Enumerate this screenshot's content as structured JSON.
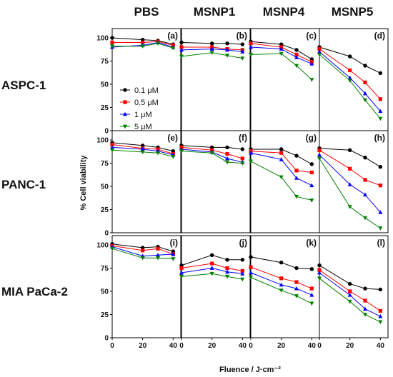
{
  "figure": {
    "columns": [
      "PBS",
      "MSNP1",
      "MSNP4",
      "MSNP5"
    ],
    "rows": [
      "ASPC-1",
      "PANC-1",
      "MIA PaCa-2"
    ],
    "ylabel": "% Cell viability",
    "xlabel": "Fluence / J·cm⁻²",
    "legend": [
      "0.1 μM",
      "0.5 μM",
      "1 μM",
      "5 μM"
    ],
    "series_colors": [
      "#000000",
      "#ff0000",
      "#0000ff",
      "#008000"
    ]
  },
  "chart_data": [
    {
      "panel": "(a)",
      "type": "line",
      "x": [
        0,
        20,
        30,
        40
      ],
      "ylim": [
        0,
        110
      ],
      "xlim": [
        0,
        45
      ],
      "series": [
        {
          "name": "0.1 μM",
          "values": [
            100,
            98,
            97,
            93
          ]
        },
        {
          "name": "0.5 μM",
          "values": [
            95,
            95,
            96,
            92
          ]
        },
        {
          "name": "1 μM",
          "values": [
            90,
            92,
            95,
            90
          ]
        },
        {
          "name": "5 μM",
          "values": [
            91,
            91,
            94,
            89
          ]
        }
      ]
    },
    {
      "panel": "(b)",
      "type": "line",
      "x": [
        0,
        20,
        30,
        40
      ],
      "ylim": [
        0,
        110
      ],
      "xlim": [
        0,
        45
      ],
      "series": [
        {
          "name": "0.1 μM",
          "values": [
            95,
            94,
            94,
            93
          ]
        },
        {
          "name": "0.5 μM",
          "values": [
            90,
            90,
            88,
            87
          ]
        },
        {
          "name": "1 μM",
          "values": [
            87,
            88,
            87,
            85
          ]
        },
        {
          "name": "5 μM",
          "values": [
            80,
            84,
            81,
            78
          ]
        }
      ]
    },
    {
      "panel": "(c)",
      "type": "line",
      "x": [
        0,
        20,
        30,
        40
      ],
      "ylim": [
        0,
        110
      ],
      "xlim": [
        0,
        45
      ],
      "series": [
        {
          "name": "0.1 μM",
          "values": [
            96,
            93,
            87,
            77
          ]
        },
        {
          "name": "0.5 μM",
          "values": [
            94,
            90,
            82,
            74
          ]
        },
        {
          "name": "1 μM",
          "values": [
            90,
            88,
            79,
            72
          ]
        },
        {
          "name": "5 μM",
          "values": [
            82,
            83,
            70,
            55
          ]
        }
      ]
    },
    {
      "panel": "(d)",
      "type": "line",
      "x": [
        0,
        20,
        30,
        40
      ],
      "ylim": [
        0,
        110
      ],
      "xlim": [
        0,
        45
      ],
      "series": [
        {
          "name": "0.1 μM",
          "values": [
            90,
            80,
            70,
            62
          ]
        },
        {
          "name": "0.5 μM",
          "values": [
            88,
            65,
            52,
            34
          ]
        },
        {
          "name": "1 μM",
          "values": [
            85,
            57,
            40,
            21
          ]
        },
        {
          "name": "5 μM",
          "values": [
            82,
            54,
            33,
            13
          ]
        }
      ]
    },
    {
      "panel": "(e)",
      "type": "line",
      "x": [
        0,
        20,
        30,
        40
      ],
      "ylim": [
        0,
        110
      ],
      "xlim": [
        0,
        45
      ],
      "series": [
        {
          "name": "0.1 μM",
          "values": [
            97,
            94,
            92,
            88
          ]
        },
        {
          "name": "0.5 μM",
          "values": [
            95,
            91,
            90,
            85
          ]
        },
        {
          "name": "1 μM",
          "values": [
            92,
            90,
            88,
            84
          ]
        },
        {
          "name": "5 μM",
          "values": [
            89,
            87,
            86,
            82
          ]
        }
      ]
    },
    {
      "panel": "(f)",
      "type": "line",
      "x": [
        0,
        20,
        30,
        40
      ],
      "ylim": [
        0,
        110
      ],
      "xlim": [
        0,
        45
      ],
      "series": [
        {
          "name": "0.1 μM",
          "values": [
            94,
            92,
            92,
            90
          ]
        },
        {
          "name": "0.5 μM",
          "values": [
            92,
            89,
            85,
            80
          ]
        },
        {
          "name": "1 μM",
          "values": [
            90,
            87,
            80,
            76
          ]
        },
        {
          "name": "5 μM",
          "values": [
            88,
            86,
            76,
            75
          ]
        }
      ]
    },
    {
      "panel": "(g)",
      "type": "line",
      "x": [
        0,
        20,
        30,
        40
      ],
      "ylim": [
        0,
        110
      ],
      "xlim": [
        0,
        45
      ],
      "series": [
        {
          "name": "0.1 μM",
          "values": [
            90,
            90,
            83,
            74
          ]
        },
        {
          "name": "0.5 μM",
          "values": [
            88,
            86,
            67,
            65
          ]
        },
        {
          "name": "1 μM",
          "values": [
            86,
            79,
            59,
            51
          ]
        },
        {
          "name": "5 μM",
          "values": [
            77,
            60,
            39,
            35
          ]
        }
      ]
    },
    {
      "panel": "(h)",
      "type": "line",
      "x": [
        0,
        20,
        30,
        40
      ],
      "ylim": [
        0,
        110
      ],
      "xlim": [
        0,
        45
      ],
      "series": [
        {
          "name": "0.1 μM",
          "values": [
            91,
            89,
            81,
            71
          ]
        },
        {
          "name": "0.5 μM",
          "values": [
            89,
            69,
            57,
            51
          ]
        },
        {
          "name": "1 μM",
          "values": [
            84,
            52,
            41,
            22
          ]
        },
        {
          "name": "5 μM",
          "values": [
            80,
            28,
            16,
            5
          ]
        }
      ]
    },
    {
      "panel": "(i)",
      "type": "line",
      "x": [
        0,
        20,
        30,
        40
      ],
      "ylim": [
        0,
        110
      ],
      "xlim": [
        0,
        45
      ],
      "series": [
        {
          "name": "0.1 μM",
          "values": [
            101,
            97,
            98,
            93
          ]
        },
        {
          "name": "0.5 μM",
          "values": [
            99,
            94,
            96,
            90
          ]
        },
        {
          "name": "1 μM",
          "values": [
            98,
            88,
            89,
            90
          ]
        },
        {
          "name": "5 μM",
          "values": [
            96,
            86,
            86,
            85
          ]
        }
      ]
    },
    {
      "panel": "(j)",
      "type": "line",
      "x": [
        0,
        20,
        30,
        40
      ],
      "ylim": [
        0,
        110
      ],
      "xlim": [
        0,
        45
      ],
      "series": [
        {
          "name": "0.1 μM",
          "values": [
            78,
            89,
            84,
            84
          ]
        },
        {
          "name": "0.5 μM",
          "values": [
            75,
            80,
            75,
            72
          ]
        },
        {
          "name": "1 μM",
          "values": [
            70,
            75,
            71,
            69
          ]
        },
        {
          "name": "5 μM",
          "values": [
            66,
            69,
            66,
            63
          ]
        }
      ]
    },
    {
      "panel": "(k)",
      "type": "line",
      "x": [
        0,
        20,
        30,
        40
      ],
      "ylim": [
        0,
        110
      ],
      "xlim": [
        0,
        45
      ],
      "series": [
        {
          "name": "0.1 μM",
          "values": [
            87,
            81,
            75,
            74
          ]
        },
        {
          "name": "0.5 μM",
          "values": [
            76,
            64,
            60,
            53
          ]
        },
        {
          "name": "1 μM",
          "values": [
            70,
            57,
            53,
            46
          ]
        },
        {
          "name": "5 μM",
          "values": [
            65,
            51,
            45,
            37
          ]
        }
      ]
    },
    {
      "panel": "(l)",
      "type": "line",
      "x": [
        0,
        20,
        30,
        40
      ],
      "ylim": [
        0,
        110
      ],
      "xlim": [
        0,
        45
      ],
      "series": [
        {
          "name": "0.1 μM",
          "values": [
            78,
            58,
            53,
            52
          ]
        },
        {
          "name": "0.5 μM",
          "values": [
            73,
            50,
            40,
            29
          ]
        },
        {
          "name": "1 μM",
          "values": [
            70,
            46,
            31,
            23
          ]
        },
        {
          "name": "5 μM",
          "values": [
            64,
            39,
            25,
            17
          ]
        }
      ]
    }
  ]
}
